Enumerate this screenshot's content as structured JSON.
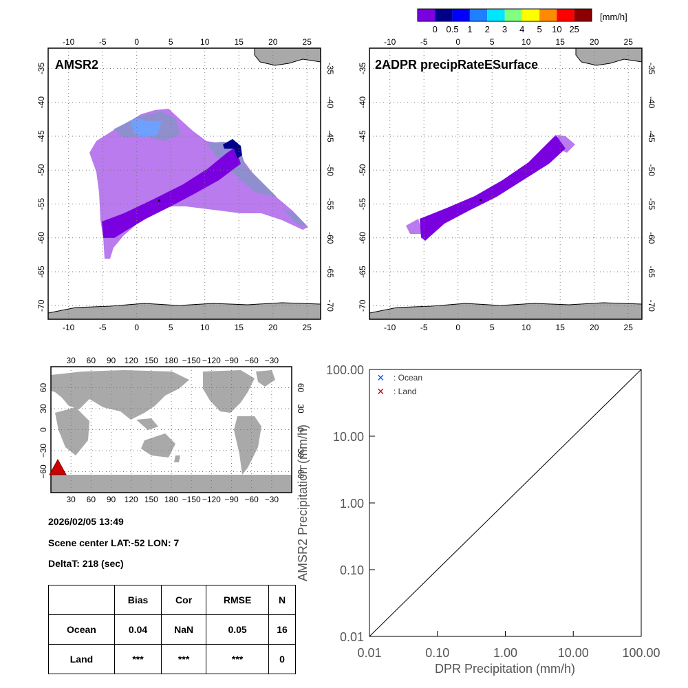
{
  "colorbar": {
    "unit": "[mm/h]",
    "labels": [
      "0",
      "0.5",
      "1",
      "2",
      "3",
      "4",
      "5",
      "10",
      "25"
    ],
    "colors": [
      "#7b00e0",
      "#00008b",
      "#0000ff",
      "#1e7fff",
      "#00e6ff",
      "#80ff80",
      "#ffff00",
      "#ff8c00",
      "#ff0000",
      "#8b0000"
    ]
  },
  "colors": {
    "ocean": "#ffffff",
    "land": "#a9a9a9",
    "light_precip": "#b97bed",
    "gray_blue": "#8f8fd0",
    "core_precip": "#7b00e0",
    "ocean_marker": "#0050ff",
    "land_marker": "#cc0000",
    "location_marker": "#cc0000"
  },
  "map_axes": {
    "lon_ticks": [
      "-10",
      "-5",
      "0",
      "5",
      "10",
      "15",
      "20",
      "25"
    ],
    "lat_ticks": [
      "-35",
      "-40",
      "-45",
      "-50",
      "-55",
      "-60",
      "-65",
      "-70"
    ]
  },
  "left_map": {
    "title": "AMSR2"
  },
  "right_map": {
    "title": "2ADPR precipRateESurface"
  },
  "world_map": {
    "lon_ticks": [
      "30",
      "60",
      "90",
      "120",
      "150",
      "180",
      "−150",
      "−120",
      "−90",
      "−60",
      "−30"
    ],
    "lat_ticks": [
      "60",
      "30",
      "0",
      "−30",
      "−60"
    ],
    "marker_icon": "red-triangle-icon"
  },
  "info": {
    "datetime": "2026/02/05 13:49",
    "scene_center": "Scene center LAT:-52   LON:   7",
    "deltat": "DeltaT:  218 (sec)"
  },
  "stats_table": {
    "headers": [
      "",
      "Bias",
      "Cor",
      "RMSE",
      "N"
    ],
    "rows": [
      {
        "label": "Ocean",
        "bias": "0.04",
        "cor": "NaN",
        "rmse": "0.05",
        "n": "16"
      },
      {
        "label": "Land",
        "bias": "***",
        "cor": "***",
        "rmse": "***",
        "n": "0"
      }
    ]
  },
  "chart_data": {
    "type": "scatter",
    "xlabel": "DPR Precipitation (mm/h)",
    "ylabel": "AMSR2 Precipitation (mm/h)",
    "xscale": "log",
    "yscale": "log",
    "xlim": [
      0.01,
      100
    ],
    "ylim": [
      0.01,
      100
    ],
    "xticks": [
      "0.01",
      "0.10",
      "1.00",
      "10.00",
      "100.00"
    ],
    "yticks": [
      "0.01",
      "0.10",
      "1.00",
      "10.00",
      "100.00"
    ],
    "legend": [
      {
        "symbol": "×",
        "label": ": Ocean",
        "color": "#0050ff"
      },
      {
        "symbol": "×",
        "label": ": Land",
        "color": "#cc0000"
      }
    ],
    "legend_position": "top-left",
    "reference_line": "1:1",
    "series": [
      {
        "points": []
      },
      {
        "points": []
      }
    ]
  }
}
